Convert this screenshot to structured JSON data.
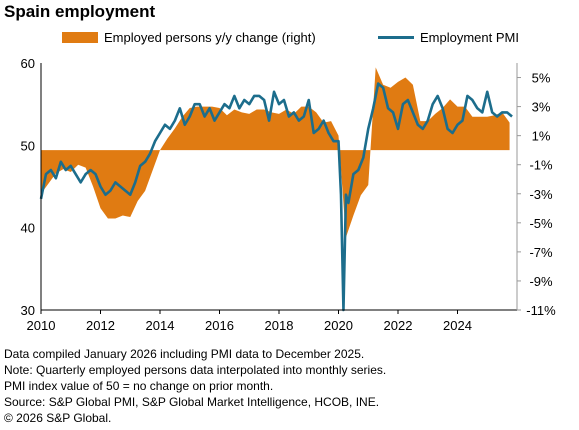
{
  "chart_data": {
    "type": "line",
    "title": "Spain employment",
    "series": [
      {
        "name": "Employed persons y/y change (right)",
        "type": "area",
        "axis": "right",
        "color": "#E07B12",
        "x": [
          2010.0,
          2010.25,
          2010.5,
          2010.75,
          2011.0,
          2011.25,
          2011.5,
          2011.75,
          2012.0,
          2012.25,
          2012.5,
          2012.75,
          2013.0,
          2013.25,
          2013.5,
          2013.75,
          2014.0,
          2014.25,
          2014.5,
          2014.75,
          2015.0,
          2015.25,
          2015.5,
          2015.75,
          2016.0,
          2016.25,
          2016.5,
          2016.75,
          2017.0,
          2017.25,
          2017.5,
          2017.75,
          2018.0,
          2018.25,
          2018.5,
          2018.75,
          2019.0,
          2019.25,
          2019.5,
          2019.75,
          2020.0,
          2020.25,
          2020.5,
          2020.75,
          2021.0,
          2021.25,
          2021.5,
          2021.75,
          2022.0,
          2022.25,
          2022.5,
          2022.75,
          2023.0,
          2023.25,
          2023.5,
          2023.75,
          2024.0,
          2024.25,
          2024.5,
          2024.75,
          2025.0,
          2025.25,
          2025.5,
          2025.75
        ],
        "values": [
          -3.0,
          -2.3,
          -1.6,
          -1.3,
          -1.5,
          -1.0,
          -1.2,
          -2.5,
          -4.0,
          -4.7,
          -4.7,
          -4.5,
          -4.6,
          -3.5,
          -2.8,
          -1.4,
          0.0,
          0.8,
          1.5,
          2.3,
          2.9,
          3.0,
          3.0,
          3.0,
          2.9,
          2.4,
          2.8,
          2.6,
          2.5,
          2.8,
          2.8,
          2.6,
          2.5,
          2.8,
          2.5,
          3.0,
          3.0,
          2.6,
          1.9,
          2.0,
          1.0,
          -6.0,
          -4.5,
          -3.1,
          -2.4,
          5.7,
          4.5,
          4.3,
          4.7,
          5.0,
          4.5,
          2.0,
          2.0,
          2.5,
          2.9,
          3.5,
          3.0,
          3.0,
          2.3,
          2.3,
          2.3,
          2.4,
          2.6,
          1.9
        ]
      },
      {
        "name": "Employment PMI",
        "type": "line",
        "axis": "left",
        "color": "#1C6D8C",
        "x": [
          2010.0,
          2010.1667,
          2010.3333,
          2010.5,
          2010.6667,
          2010.8333,
          2011.0,
          2011.1667,
          2011.3333,
          2011.5,
          2011.6667,
          2011.8333,
          2012.0,
          2012.1667,
          2012.3333,
          2012.5,
          2012.6667,
          2012.8333,
          2013.0,
          2013.1667,
          2013.3333,
          2013.5,
          2013.6667,
          2013.8333,
          2014.0,
          2014.1667,
          2014.3333,
          2014.5,
          2014.6667,
          2014.8333,
          2015.0,
          2015.1667,
          2015.3333,
          2015.5,
          2015.6667,
          2015.8333,
          2016.0,
          2016.1667,
          2016.3333,
          2016.5,
          2016.6667,
          2016.8333,
          2017.0,
          2017.1667,
          2017.3333,
          2017.5,
          2017.6667,
          2017.8333,
          2018.0,
          2018.1667,
          2018.3333,
          2018.5,
          2018.6667,
          2018.8333,
          2019.0,
          2019.1667,
          2019.3333,
          2019.5,
          2019.6667,
          2019.8333,
          2020.0,
          2020.0833,
          2020.1667,
          2020.25,
          2020.3333,
          2020.5,
          2020.6667,
          2020.8333,
          2021.0,
          2021.1667,
          2021.3333,
          2021.5,
          2021.6667,
          2021.8333,
          2022.0,
          2022.1667,
          2022.3333,
          2022.5,
          2022.6667,
          2022.8333,
          2023.0,
          2023.1667,
          2023.3333,
          2023.5,
          2023.6667,
          2023.8333,
          2024.0,
          2024.1667,
          2024.3333,
          2024.5,
          2024.6667,
          2024.8333,
          2025.0,
          2025.1667,
          2025.3333,
          2025.5,
          2025.6667,
          2025.8333
        ],
        "values": [
          43.5,
          46.5,
          47.0,
          46.0,
          48.0,
          47.0,
          47.5,
          46.5,
          45.5,
          46.5,
          47.0,
          46.5,
          45.0,
          44.0,
          44.5,
          45.5,
          45.0,
          44.5,
          44.0,
          45.5,
          47.5,
          48.0,
          49.0,
          50.5,
          51.5,
          52.5,
          52.0,
          53.0,
          54.5,
          52.5,
          53.5,
          55.0,
          55.0,
          53.5,
          54.5,
          53.0,
          54.0,
          55.0,
          54.5,
          56.0,
          54.5,
          55.5,
          55.0,
          56.0,
          56.0,
          55.5,
          53.0,
          56.5,
          55.0,
          55.5,
          53.5,
          54.0,
          53.0,
          53.5,
          55.5,
          51.5,
          52.0,
          53.0,
          51.5,
          50.5,
          50.5,
          44.0,
          30.0,
          44.0,
          43.0,
          46.5,
          47.0,
          48.5,
          52.0,
          54.5,
          57.5,
          57.0,
          54.5,
          54.0,
          52.0,
          55.0,
          55.5,
          54.0,
          52.5,
          52.0,
          53.0,
          55.0,
          56.0,
          54.5,
          52.0,
          51.5,
          52.5,
          53.0,
          56.0,
          55.5,
          54.5,
          54.0,
          56.5,
          54.0,
          53.5,
          54.0,
          54.0,
          53.5
        ]
      }
    ],
    "xlim": [
      2010,
      2026
    ],
    "x_ticks": [
      "2010",
      "2012",
      "2014",
      "2016",
      "2018",
      "2020",
      "2022",
      "2024"
    ],
    "y_left": {
      "lim": [
        30,
        60
      ],
      "ticks": [
        "30",
        "40",
        "50",
        "60"
      ]
    },
    "y_right": {
      "lim": [
        -11,
        6
      ],
      "ticks": [
        "5%",
        "3%",
        "1%",
        "-1%",
        "-3%",
        "-5%",
        "-7%",
        "-9%",
        "-11%"
      ]
    },
    "grid": false,
    "legend_position": "top"
  },
  "notes": [
    "Data compiled January 2026 including PMI data to December 2025.",
    "Note: Quarterly employed persons data interpolated into monthly series.",
    "PMI index value of 50 = no change on prior month.",
    "Source: S&P Global PMI, S&P Global Market Intelligence, HCOB, INE.",
    "© 2026 S&P Global."
  ]
}
